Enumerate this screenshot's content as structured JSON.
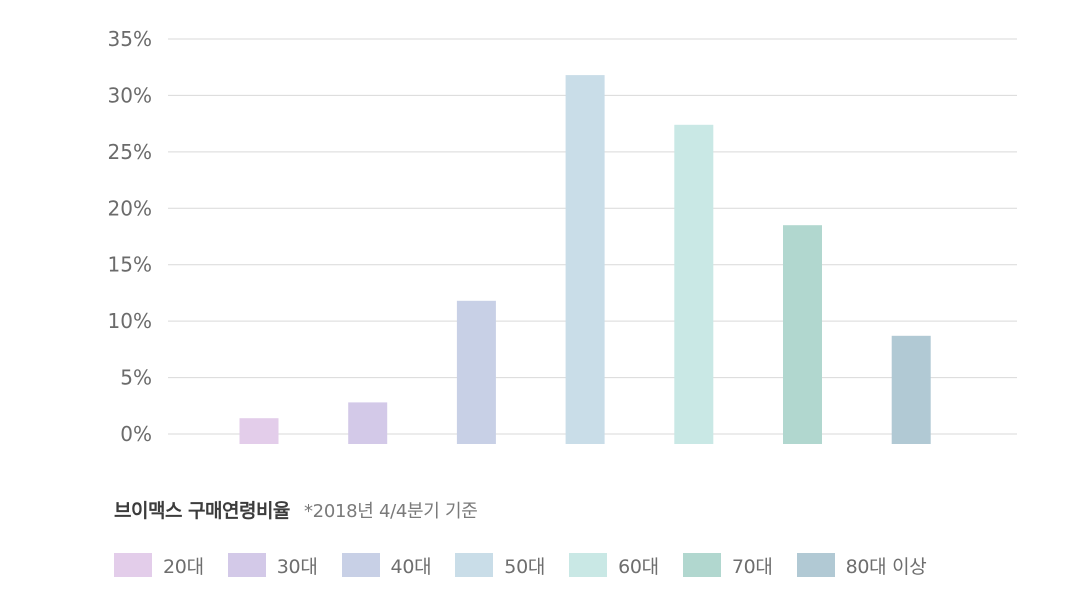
{
  "chart_data": {
    "type": "bar",
    "title": "브이맥스 구매연령비율",
    "note": "*2018년 4/4분기 기준",
    "categories": [
      "20대",
      "30대",
      "40대",
      "50대",
      "60대",
      "70대",
      "80대 이상"
    ],
    "values": [
      1.4,
      2.8,
      11.8,
      31.8,
      27.4,
      18.5,
      8.7
    ],
    "colors": [
      "#e3cdea",
      "#d3c9e8",
      "#c8d0e6",
      "#c9dde8",
      "#c9e8e5",
      "#b1d7cf",
      "#b1c9d4"
    ],
    "yticks": [
      "0%",
      "5%",
      "10%",
      "15%",
      "20%",
      "25%",
      "30%",
      "35%"
    ],
    "ylim": [
      0,
      35
    ],
    "grid": true,
    "legend_position": "bottom"
  }
}
